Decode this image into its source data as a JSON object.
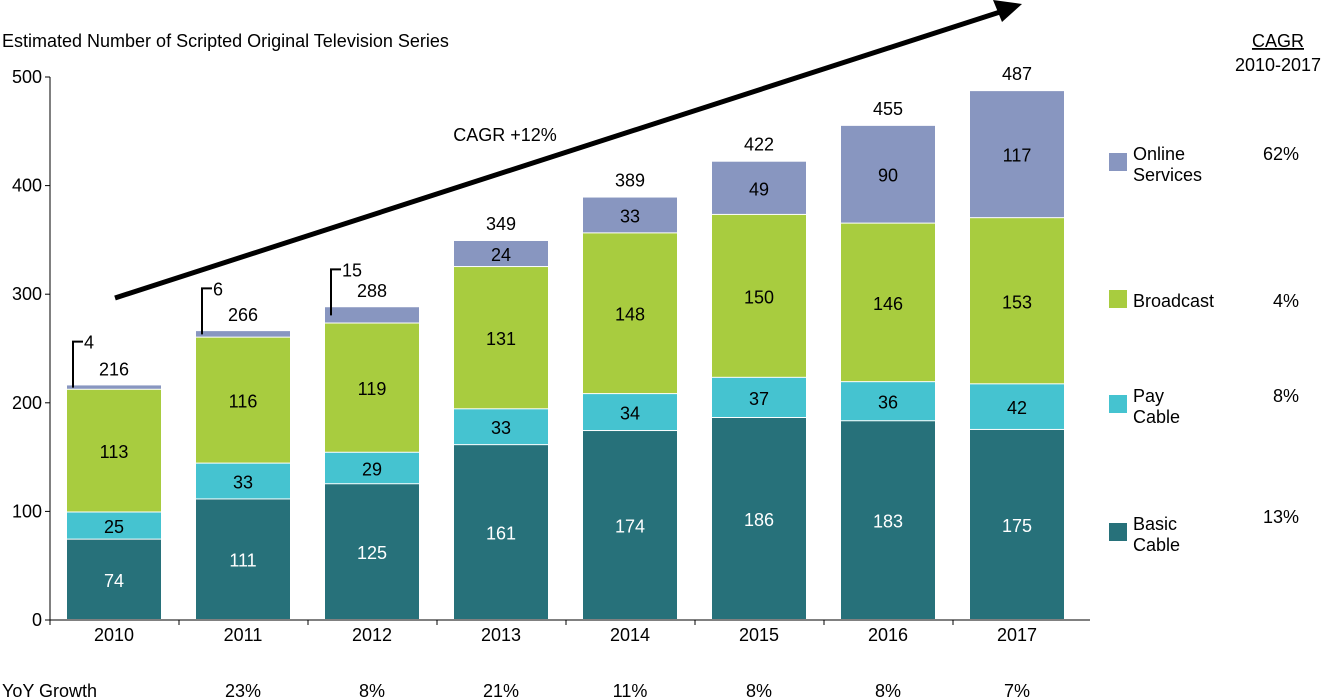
{
  "chart_data": {
    "type": "bar",
    "stacked": true,
    "title": "Estimated Number of Scripted Original Television Series",
    "categories": [
      "2010",
      "2011",
      "2012",
      "2013",
      "2014",
      "2015",
      "2016",
      "2017"
    ],
    "ylim": [
      0,
      500
    ],
    "yticks": [
      "0",
      "100",
      "200",
      "300",
      "400",
      "500"
    ],
    "grid": false,
    "legend_placement": "right",
    "series": [
      {
        "name": "Basic Cable",
        "color": "#27717A",
        "values": [
          74,
          111,
          125,
          161,
          174,
          186,
          183,
          175
        ],
        "cagr": "13%"
      },
      {
        "name": "Pay Cable",
        "color": "#45C3D0",
        "values": [
          25,
          33,
          29,
          33,
          34,
          37,
          36,
          42
        ],
        "cagr": "8%"
      },
      {
        "name": "Broadcast",
        "color": "#A8CC3F",
        "values": [
          113,
          116,
          119,
          131,
          148,
          150,
          146,
          153
        ],
        "cagr": "4%"
      },
      {
        "name": "Online Services",
        "color": "#8896C0",
        "values": [
          4,
          6,
          15,
          24,
          33,
          49,
          90,
          117
        ],
        "cagr": "62%"
      }
    ],
    "totals": [
      "216",
      "266",
      "288",
      "349",
      "389",
      "422",
      "455",
      "487"
    ],
    "annotation": "CAGR +12%",
    "cagr_header": "CAGR",
    "cagr_period": "2010-2017",
    "yoy_label": "YoY Growth",
    "yoy": [
      "",
      "23%",
      "8%",
      "21%",
      "11%",
      "8%",
      "8%",
      "7%"
    ]
  }
}
